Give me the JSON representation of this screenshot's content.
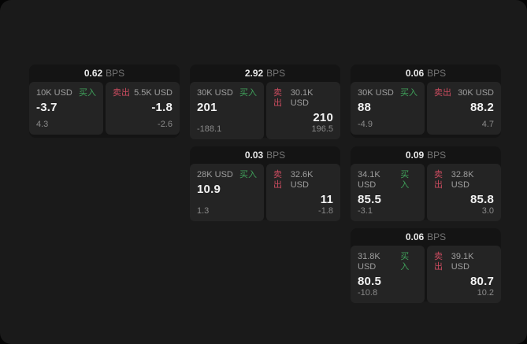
{
  "labels": {
    "bps": "BPS",
    "buy": "买入",
    "sell": "卖出"
  },
  "colors": {
    "buy": "#3fa05a",
    "sell": "#c94b5f"
  },
  "cards": [
    {
      "bps": "0.62",
      "buy": {
        "amount": "10K USD",
        "value": "-3.7",
        "delta": "4.3"
      },
      "sell": {
        "amount": "5.5K USD",
        "value": "-1.8",
        "delta": "-2.6"
      }
    },
    {
      "bps": "2.92",
      "buy": {
        "amount": "30K USD",
        "value": "201",
        "delta": "-188.1"
      },
      "sell": {
        "amount": "30.1K USD",
        "value": "210",
        "delta": "196.5"
      }
    },
    {
      "bps": "0.06",
      "buy": {
        "amount": "30K USD",
        "value": "88",
        "delta": "-4.9"
      },
      "sell": {
        "amount": "30K USD",
        "value": "88.2",
        "delta": "4.7"
      }
    },
    {
      "bps": "0.03",
      "buy": {
        "amount": "28K USD",
        "value": "10.9",
        "delta": "1.3"
      },
      "sell": {
        "amount": "32.6K USD",
        "value": "11",
        "delta": "-1.8"
      }
    },
    {
      "bps": "0.09",
      "buy": {
        "amount": "34.1K USD",
        "value": "85.5",
        "delta": "-3.1"
      },
      "sell": {
        "amount": "32.8K USD",
        "value": "85.8",
        "delta": "3.0"
      }
    },
    {
      "bps": "0.06",
      "buy": {
        "amount": "31.8K USD",
        "value": "80.5",
        "delta": "-10.8"
      },
      "sell": {
        "amount": "39.1K USD",
        "value": "80.7",
        "delta": "10.2"
      }
    }
  ]
}
